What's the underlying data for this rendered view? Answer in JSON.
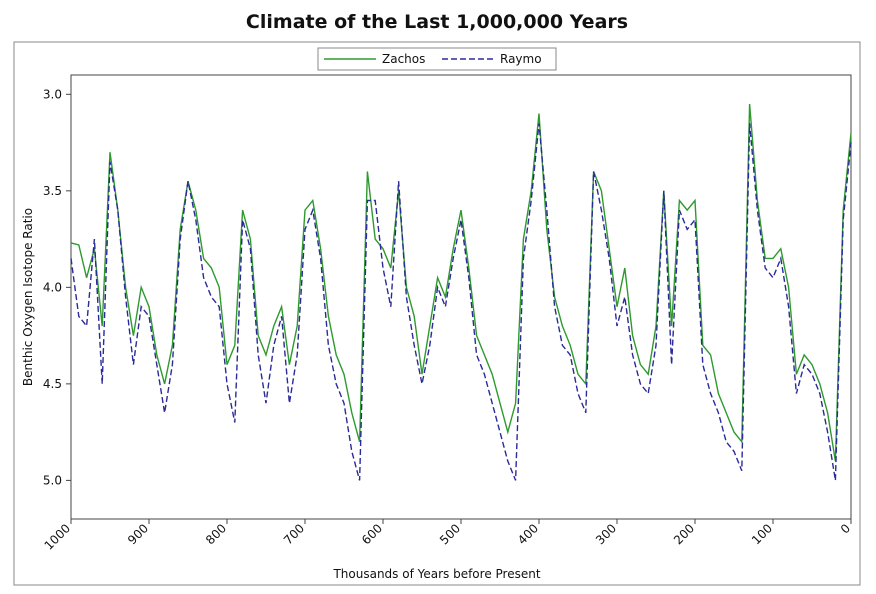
{
  "chart_data": {
    "type": "line",
    "title": "Climate of the Last 1,000,000 Years",
    "x_label": "Thousands of Years before Present",
    "y_label": "Benthic Oxygen Isotope Ratio",
    "x": [
      1000,
      990,
      980,
      970,
      960,
      950,
      940,
      930,
      920,
      910,
      900,
      890,
      880,
      870,
      860,
      850,
      840,
      830,
      820,
      810,
      800,
      790,
      780,
      770,
      760,
      750,
      740,
      730,
      720,
      710,
      700,
      690,
      680,
      670,
      660,
      650,
      640,
      630,
      620,
      610,
      600,
      590,
      580,
      570,
      560,
      550,
      540,
      530,
      520,
      510,
      500,
      490,
      480,
      470,
      460,
      450,
      440,
      430,
      420,
      410,
      400,
      390,
      380,
      370,
      360,
      350,
      340,
      330,
      320,
      310,
      300,
      290,
      280,
      270,
      260,
      250,
      240,
      230,
      220,
      210,
      200,
      190,
      180,
      170,
      160,
      150,
      140,
      130,
      120,
      110,
      100,
      90,
      80,
      70,
      60,
      50,
      40,
      30,
      20,
      10,
      0
    ],
    "series": [
      {
        "name": "Zachos",
        "color": "#2e9a2e",
        "dash": false,
        "values": [
          3.77,
          3.78,
          3.95,
          3.8,
          4.2,
          3.3,
          3.6,
          4.0,
          4.25,
          4.0,
          4.1,
          4.35,
          4.5,
          4.3,
          3.7,
          3.45,
          3.6,
          3.85,
          3.9,
          4.0,
          4.4,
          4.3,
          3.6,
          3.75,
          4.25,
          4.35,
          4.2,
          4.1,
          4.4,
          4.2,
          3.6,
          3.55,
          3.8,
          4.15,
          4.35,
          4.45,
          4.65,
          4.8,
          3.4,
          3.75,
          3.8,
          3.9,
          3.5,
          4.0,
          4.15,
          4.45,
          4.2,
          3.95,
          4.05,
          3.8,
          3.6,
          3.9,
          4.25,
          4.35,
          4.45,
          4.6,
          4.75,
          4.6,
          3.75,
          3.5,
          3.1,
          3.7,
          4.05,
          4.2,
          4.3,
          4.45,
          4.5,
          3.4,
          3.5,
          3.8,
          4.1,
          3.9,
          4.25,
          4.4,
          4.45,
          4.2,
          3.5,
          4.2,
          3.55,
          3.6,
          3.55,
          4.3,
          4.35,
          4.55,
          4.65,
          4.75,
          4.8,
          3.05,
          3.55,
          3.85,
          3.85,
          3.8,
          4.0,
          4.45,
          4.35,
          4.4,
          4.5,
          4.65,
          4.9,
          3.6,
          3.2
        ]
      },
      {
        "name": "Raymo",
        "color": "#2a2a9a",
        "dash": true,
        "values": [
          3.85,
          4.15,
          4.2,
          3.75,
          4.5,
          3.35,
          3.6,
          4.05,
          4.4,
          4.1,
          4.15,
          4.4,
          4.65,
          4.4,
          3.75,
          3.45,
          3.65,
          3.95,
          4.05,
          4.1,
          4.5,
          4.7,
          3.65,
          3.8,
          4.35,
          4.6,
          4.3,
          4.15,
          4.6,
          4.35,
          3.7,
          3.6,
          3.85,
          4.3,
          4.5,
          4.6,
          4.85,
          5.0,
          3.55,
          3.55,
          3.9,
          4.1,
          3.45,
          4.05,
          4.3,
          4.5,
          4.3,
          4.0,
          4.1,
          3.85,
          3.65,
          3.95,
          4.35,
          4.45,
          4.6,
          4.75,
          4.9,
          5.0,
          3.85,
          3.55,
          3.15,
          3.6,
          4.1,
          4.3,
          4.35,
          4.55,
          4.65,
          3.4,
          3.6,
          3.85,
          4.2,
          4.05,
          4.35,
          4.5,
          4.55,
          4.3,
          3.5,
          4.4,
          3.6,
          3.7,
          3.65,
          4.4,
          4.55,
          4.65,
          4.8,
          4.85,
          4.95,
          3.15,
          3.6,
          3.9,
          3.95,
          3.85,
          4.1,
          4.55,
          4.4,
          4.45,
          4.55,
          4.75,
          5.0,
          3.65,
          3.25
        ]
      }
    ],
    "xlim": [
      1000,
      0
    ],
    "xticks": [
      1000,
      900,
      800,
      700,
      600,
      500,
      400,
      300,
      200,
      100,
      0
    ],
    "ylim": [
      5.2,
      2.9
    ],
    "yticks": [
      {
        "value": 3,
        "label": "3.0"
      },
      3.5,
      {
        "value": 4,
        "label": "4.0"
      },
      4.5,
      {
        "value": 5,
        "label": "5.0"
      }
    ],
    "legend": "top"
  }
}
